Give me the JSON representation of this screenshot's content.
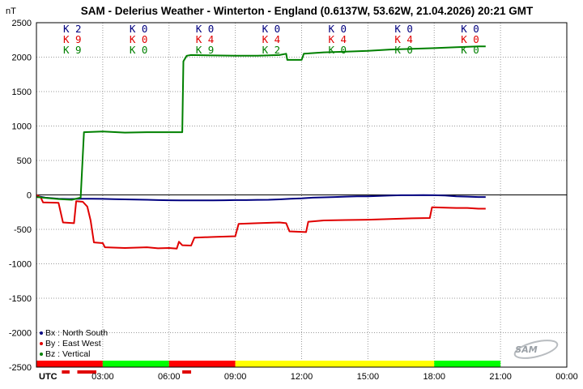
{
  "chart_data": {
    "type": "line",
    "title": "SAM - Delerius Weather - Winterton - England (0.6137W, 53.62W, 21.04.2026)  20:21 GMT",
    "ylabel": "nT",
    "ylim": [
      -2500,
      2500
    ],
    "ytick_values": [
      2500,
      2000,
      1500,
      1000,
      500,
      0,
      -500,
      -1000,
      -1500,
      -2000,
      -2500
    ],
    "xlim": [
      0,
      24
    ],
    "x_units": "hours UTC",
    "xtick_labels": [
      "UTC",
      "03:00",
      "06:00",
      "09:00",
      "12:00",
      "15:00",
      "18:00",
      "21:00",
      "00:00"
    ],
    "xtick_positions": [
      0,
      3,
      6,
      9,
      12,
      15,
      18,
      21,
      24
    ],
    "grid": true,
    "legend_position": "bottom-left",
    "series": [
      {
        "name": "Bx : North South",
        "color": "#00007f",
        "points": [
          [
            0.0,
            -15
          ],
          [
            0.4,
            -40
          ],
          [
            1.0,
            -55
          ],
          [
            1.5,
            -60
          ],
          [
            2.0,
            -55
          ],
          [
            2.5,
            -55
          ],
          [
            3.0,
            -58
          ],
          [
            3.5,
            -62
          ],
          [
            4.0,
            -65
          ],
          [
            4.5,
            -68
          ],
          [
            5.0,
            -70
          ],
          [
            5.5,
            -75
          ],
          [
            6.0,
            -78
          ],
          [
            6.5,
            -80
          ],
          [
            7.0,
            -80
          ],
          [
            7.5,
            -80
          ],
          [
            8.0,
            -80
          ],
          [
            8.5,
            -78
          ],
          [
            9.0,
            -75
          ],
          [
            9.5,
            -75
          ],
          [
            10.0,
            -72
          ],
          [
            10.5,
            -70
          ],
          [
            11.0,
            -65
          ],
          [
            11.5,
            -55
          ],
          [
            12.0,
            -50
          ],
          [
            12.5,
            -40
          ],
          [
            13.0,
            -35
          ],
          [
            13.5,
            -30
          ],
          [
            14.0,
            -25
          ],
          [
            14.5,
            -20
          ],
          [
            15.0,
            -20
          ],
          [
            15.5,
            -15
          ],
          [
            16.0,
            -10
          ],
          [
            16.5,
            -5
          ],
          [
            17.0,
            -5
          ],
          [
            17.5,
            -2
          ],
          [
            18.0,
            -5
          ],
          [
            18.5,
            -10
          ],
          [
            19.0,
            -20
          ],
          [
            19.5,
            -25
          ],
          [
            20.0,
            -30
          ],
          [
            20.33,
            -30
          ]
        ]
      },
      {
        "name": "By : East West",
        "color": "#e00000",
        "points": [
          [
            0.0,
            0
          ],
          [
            0.2,
            -40
          ],
          [
            0.3,
            -110
          ],
          [
            1.0,
            -115
          ],
          [
            1.2,
            -400
          ],
          [
            1.7,
            -410
          ],
          [
            1.8,
            -90
          ],
          [
            2.1,
            -100
          ],
          [
            2.3,
            -170
          ],
          [
            2.45,
            -370
          ],
          [
            2.6,
            -690
          ],
          [
            3.0,
            -700
          ],
          [
            3.1,
            -760
          ],
          [
            4.0,
            -770
          ],
          [
            5.0,
            -760
          ],
          [
            5.5,
            -775
          ],
          [
            6.0,
            -770
          ],
          [
            6.35,
            -780
          ],
          [
            6.45,
            -680
          ],
          [
            6.6,
            -730
          ],
          [
            7.0,
            -735
          ],
          [
            7.15,
            -620
          ],
          [
            8.0,
            -610
          ],
          [
            9.0,
            -600
          ],
          [
            9.15,
            -420
          ],
          [
            10.0,
            -410
          ],
          [
            11.0,
            -400
          ],
          [
            11.3,
            -410
          ],
          [
            11.45,
            -530
          ],
          [
            12.2,
            -540
          ],
          [
            12.3,
            -390
          ],
          [
            13.0,
            -370
          ],
          [
            14.0,
            -365
          ],
          [
            15.0,
            -360
          ],
          [
            16.0,
            -350
          ],
          [
            17.0,
            -340
          ],
          [
            17.8,
            -335
          ],
          [
            17.9,
            -180
          ],
          [
            18.5,
            -185
          ],
          [
            19.0,
            -190
          ],
          [
            19.5,
            -190
          ],
          [
            20.0,
            -200
          ],
          [
            20.33,
            -200
          ]
        ]
      },
      {
        "name": "Bz : Vertical",
        "color": "#008000",
        "points": [
          [
            0.0,
            -30
          ],
          [
            1.0,
            -60
          ],
          [
            1.6,
            -70
          ],
          [
            2.0,
            -40
          ],
          [
            2.15,
            910
          ],
          [
            3.0,
            920
          ],
          [
            4.0,
            905
          ],
          [
            5.0,
            910
          ],
          [
            6.0,
            910
          ],
          [
            6.6,
            910
          ],
          [
            6.65,
            1940
          ],
          [
            6.8,
            2020
          ],
          [
            7.0,
            2030
          ],
          [
            8.0,
            2025
          ],
          [
            9.0,
            2020
          ],
          [
            10.0,
            2020
          ],
          [
            11.0,
            2030
          ],
          [
            11.3,
            2050
          ],
          [
            11.35,
            1960
          ],
          [
            12.0,
            1960
          ],
          [
            12.1,
            2050
          ],
          [
            13.0,
            2070
          ],
          [
            14.0,
            2080
          ],
          [
            15.0,
            2090
          ],
          [
            16.0,
            2110
          ],
          [
            17.0,
            2120
          ],
          [
            18.0,
            2130
          ],
          [
            19.0,
            2145
          ],
          [
            19.5,
            2150
          ],
          [
            20.0,
            2155
          ],
          [
            20.33,
            2155
          ]
        ]
      }
    ],
    "k_index": [
      {
        "x": 0,
        "bx": "K 2",
        "by": "K 9",
        "bz": "K 9"
      },
      {
        "x": 3,
        "bx": "K 0",
        "by": "K 0",
        "bz": "K 0"
      },
      {
        "x": 6,
        "bx": "K 0",
        "by": "K 4",
        "bz": "K 9"
      },
      {
        "x": 9,
        "bx": "K 0",
        "by": "K 4",
        "bz": "K 2"
      },
      {
        "x": 12,
        "bx": "K 0",
        "by": "K 4",
        "bz": "K 0"
      },
      {
        "x": 15,
        "bx": "K 0",
        "by": "K 4",
        "bz": "K 0"
      },
      {
        "x": 18,
        "bx": "K 0",
        "by": "K 0",
        "bz": "K 0"
      }
    ],
    "k_colors": {
      "bx": "#00007f",
      "by": "#e00000",
      "bz": "#008000"
    },
    "status_bar": [
      {
        "from": 0,
        "to": 3,
        "color": "#ff0000"
      },
      {
        "from": 3,
        "to": 6,
        "color": "#00ff00"
      },
      {
        "from": 6,
        "to": 9,
        "color": "#ff0000"
      },
      {
        "from": 9,
        "to": 18,
        "color": "#ffff00"
      },
      {
        "from": 18,
        "to": 21,
        "color": "#00ff00"
      }
    ],
    "event_marks": [
      {
        "from": 1.15,
        "to": 1.5
      },
      {
        "from": 1.85,
        "to": 2.6
      },
      {
        "from": 2.6,
        "to": 2.7
      },
      {
        "from": 6.6,
        "to": 7.0
      }
    ],
    "logo": "SAM"
  }
}
